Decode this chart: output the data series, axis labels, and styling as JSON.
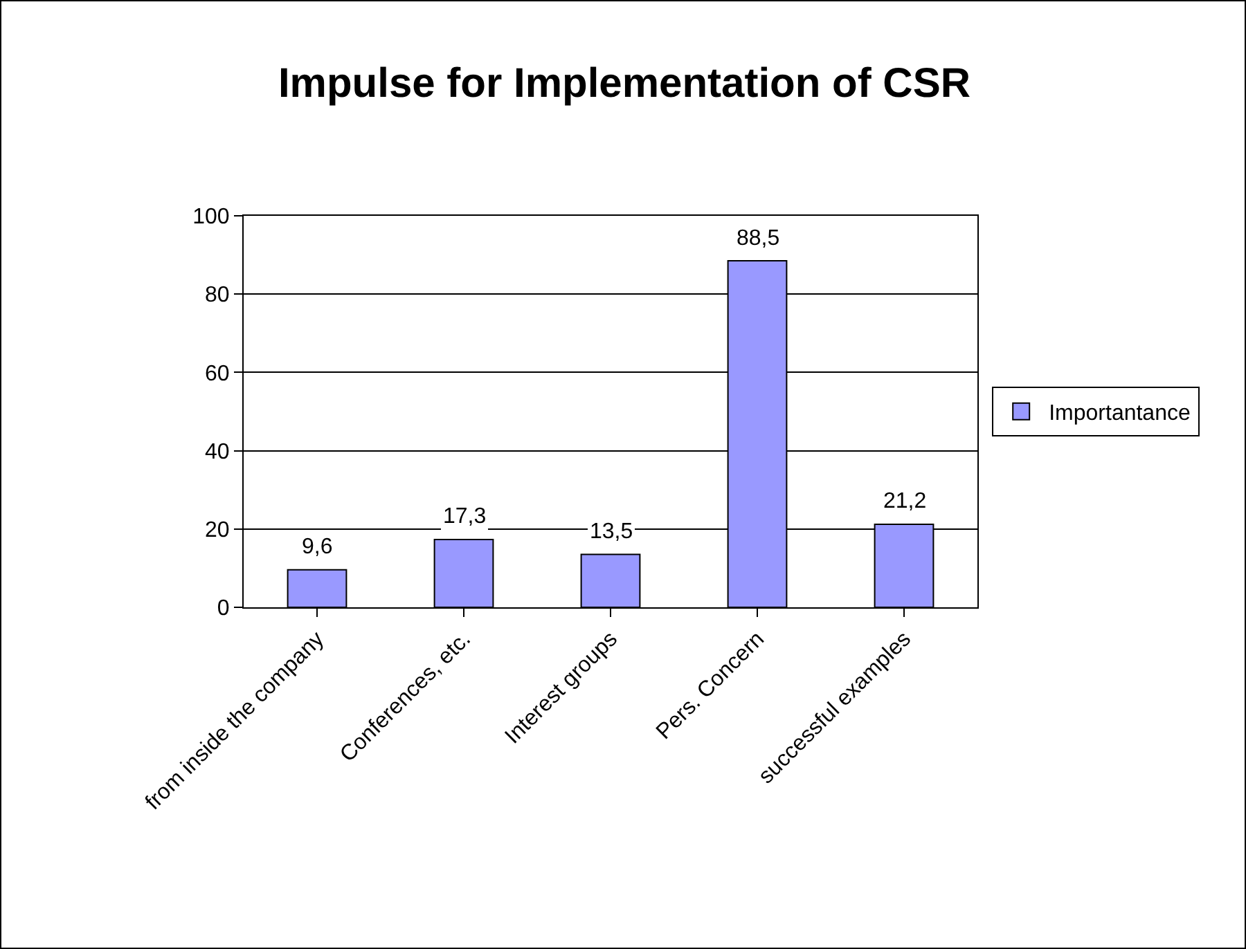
{
  "chart_data": {
    "type": "bar",
    "title": "Impulse for Implementation of CSR",
    "categories": [
      "from inside the company",
      "Conferences, etc.",
      "Interest groups",
      "Pers. Concern",
      "successful examples"
    ],
    "series": [
      {
        "name": "Importantance",
        "color": "#9999ff",
        "values": [
          9.6,
          17.3,
          13.5,
          88.5,
          21.2
        ],
        "value_labels": [
          "9,6",
          "17,3",
          "13,5",
          "88,5",
          "21,2"
        ]
      }
    ],
    "ylim": [
      0,
      100
    ],
    "yticks": [
      0,
      20,
      40,
      60,
      80,
      100
    ],
    "grid": "y",
    "legend": "right"
  }
}
